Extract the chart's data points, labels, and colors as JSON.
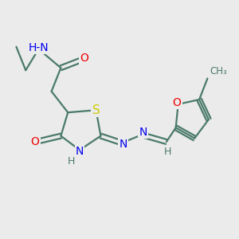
{
  "bg_color": "#ebebeb",
  "bond_color": "#4a7a6a",
  "bond_width": 1.6,
  "atom_colors": {
    "N": "#0000ee",
    "O": "#ee0000",
    "S": "#cccc00",
    "H": "#4a7a6a",
    "C": "#4a7a6a"
  },
  "font_size": 10,
  "title": ""
}
